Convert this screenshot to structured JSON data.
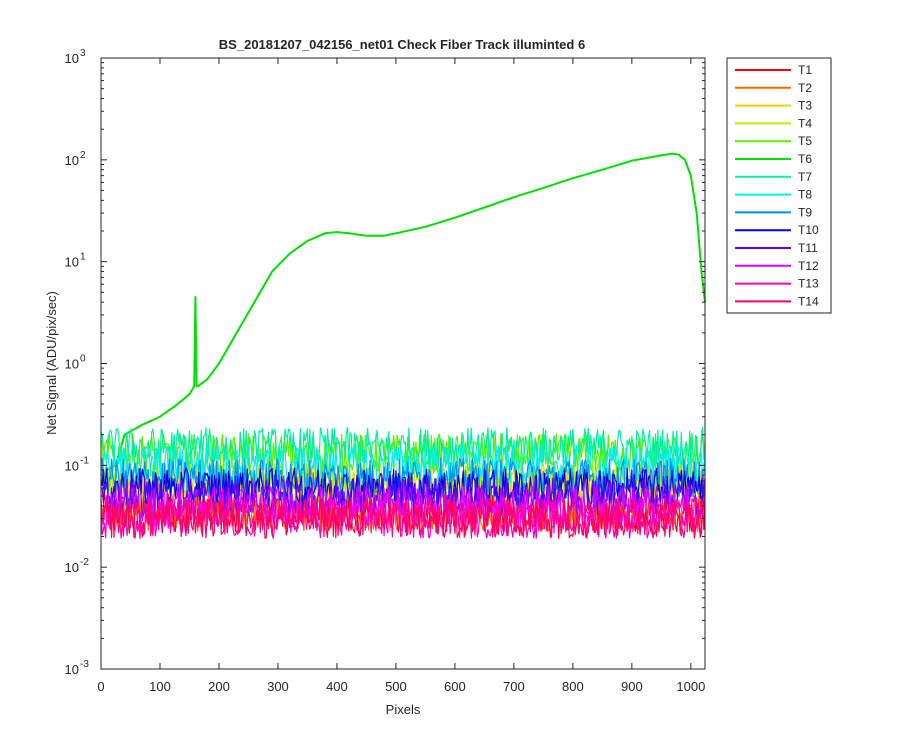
{
  "chart_data": {
    "type": "line",
    "title": "BS_20181207_042156_net01   Check Fiber     Track illuminted 6",
    "xlabel": "Pixels",
    "ylabel": "Net Signal (ADU/pix/sec)",
    "xlim": [
      0,
      1024
    ],
    "ylim": [
      0.001,
      1000
    ],
    "yscale": "log",
    "grid": false,
    "legend_position": "outside-top-right",
    "xticks": [
      0,
      100,
      200,
      300,
      400,
      500,
      600,
      700,
      800,
      900,
      1000
    ],
    "xtick_labels": [
      "0",
      "100",
      "200",
      "300",
      "400",
      "500",
      "600",
      "700",
      "800",
      "900",
      "1000"
    ],
    "yticks": [
      0.001,
      0.01,
      0.1,
      1,
      10,
      100,
      1000
    ],
    "ytick_labels": [
      {
        "base": "10",
        "exp": "-3"
      },
      {
        "base": "10",
        "exp": "-2"
      },
      {
        "base": "10",
        "exp": "-1"
      },
      {
        "base": "10",
        "exp": "0"
      },
      {
        "base": "10",
        "exp": "1"
      },
      {
        "base": "10",
        "exp": "2"
      },
      {
        "base": "10",
        "exp": "3"
      }
    ],
    "series": [
      {
        "name": "T1",
        "color": "#ff0000",
        "noise_level": 0.035
      },
      {
        "name": "T2",
        "color": "#ff6a00",
        "noise_level": 0.035
      },
      {
        "name": "T3",
        "color": "#ffd000",
        "noise_level": 0.07
      },
      {
        "name": "T4",
        "color": "#b8f000",
        "noise_level": 0.07
      },
      {
        "name": "T5",
        "color": "#5cf000",
        "noise_level": 0.13
      },
      {
        "name": "T6",
        "color": "#00e000",
        "x": [
          0,
          10,
          25,
          40,
          70,
          100,
          130,
          150,
          158,
          160,
          162,
          165,
          180,
          200,
          230,
          260,
          290,
          320,
          350,
          380,
          400,
          420,
          450,
          480,
          500,
          550,
          600,
          650,
          700,
          750,
          800,
          850,
          900,
          940,
          960,
          970,
          980,
          990,
          1000,
          1010,
          1018,
          1024
        ],
        "y": [
          0.07,
          0.09,
          0.1,
          0.2,
          0.25,
          0.3,
          0.4,
          0.5,
          0.6,
          4.5,
          0.6,
          0.6,
          0.7,
          1.0,
          2.0,
          4.0,
          8.0,
          12.0,
          16.0,
          19.0,
          19.5,
          19.0,
          18.0,
          18.0,
          19.0,
          22.0,
          27.0,
          34.0,
          43.0,
          53.0,
          66.0,
          80.0,
          98.0,
          108.0,
          113.0,
          115.0,
          112.0,
          100.0,
          70.0,
          30.0,
          8.0,
          4.0
        ]
      },
      {
        "name": "T7",
        "color": "#00f0a0",
        "noise_level": 0.15
      },
      {
        "name": "T8",
        "color": "#00f0f0",
        "noise_level": 0.1
      },
      {
        "name": "T9",
        "color": "#0090ff",
        "noise_level": 0.075
      },
      {
        "name": "T10",
        "color": "#0000e0",
        "noise_level": 0.06
      },
      {
        "name": "T11",
        "color": "#6000ff",
        "noise_level": 0.05
      },
      {
        "name": "T12",
        "color": "#e000ff",
        "noise_level": 0.04
      },
      {
        "name": "T13",
        "color": "#ff00c0",
        "noise_level": 0.03
      },
      {
        "name": "T14",
        "color": "#ff0060",
        "noise_level": 0.03
      }
    ]
  }
}
